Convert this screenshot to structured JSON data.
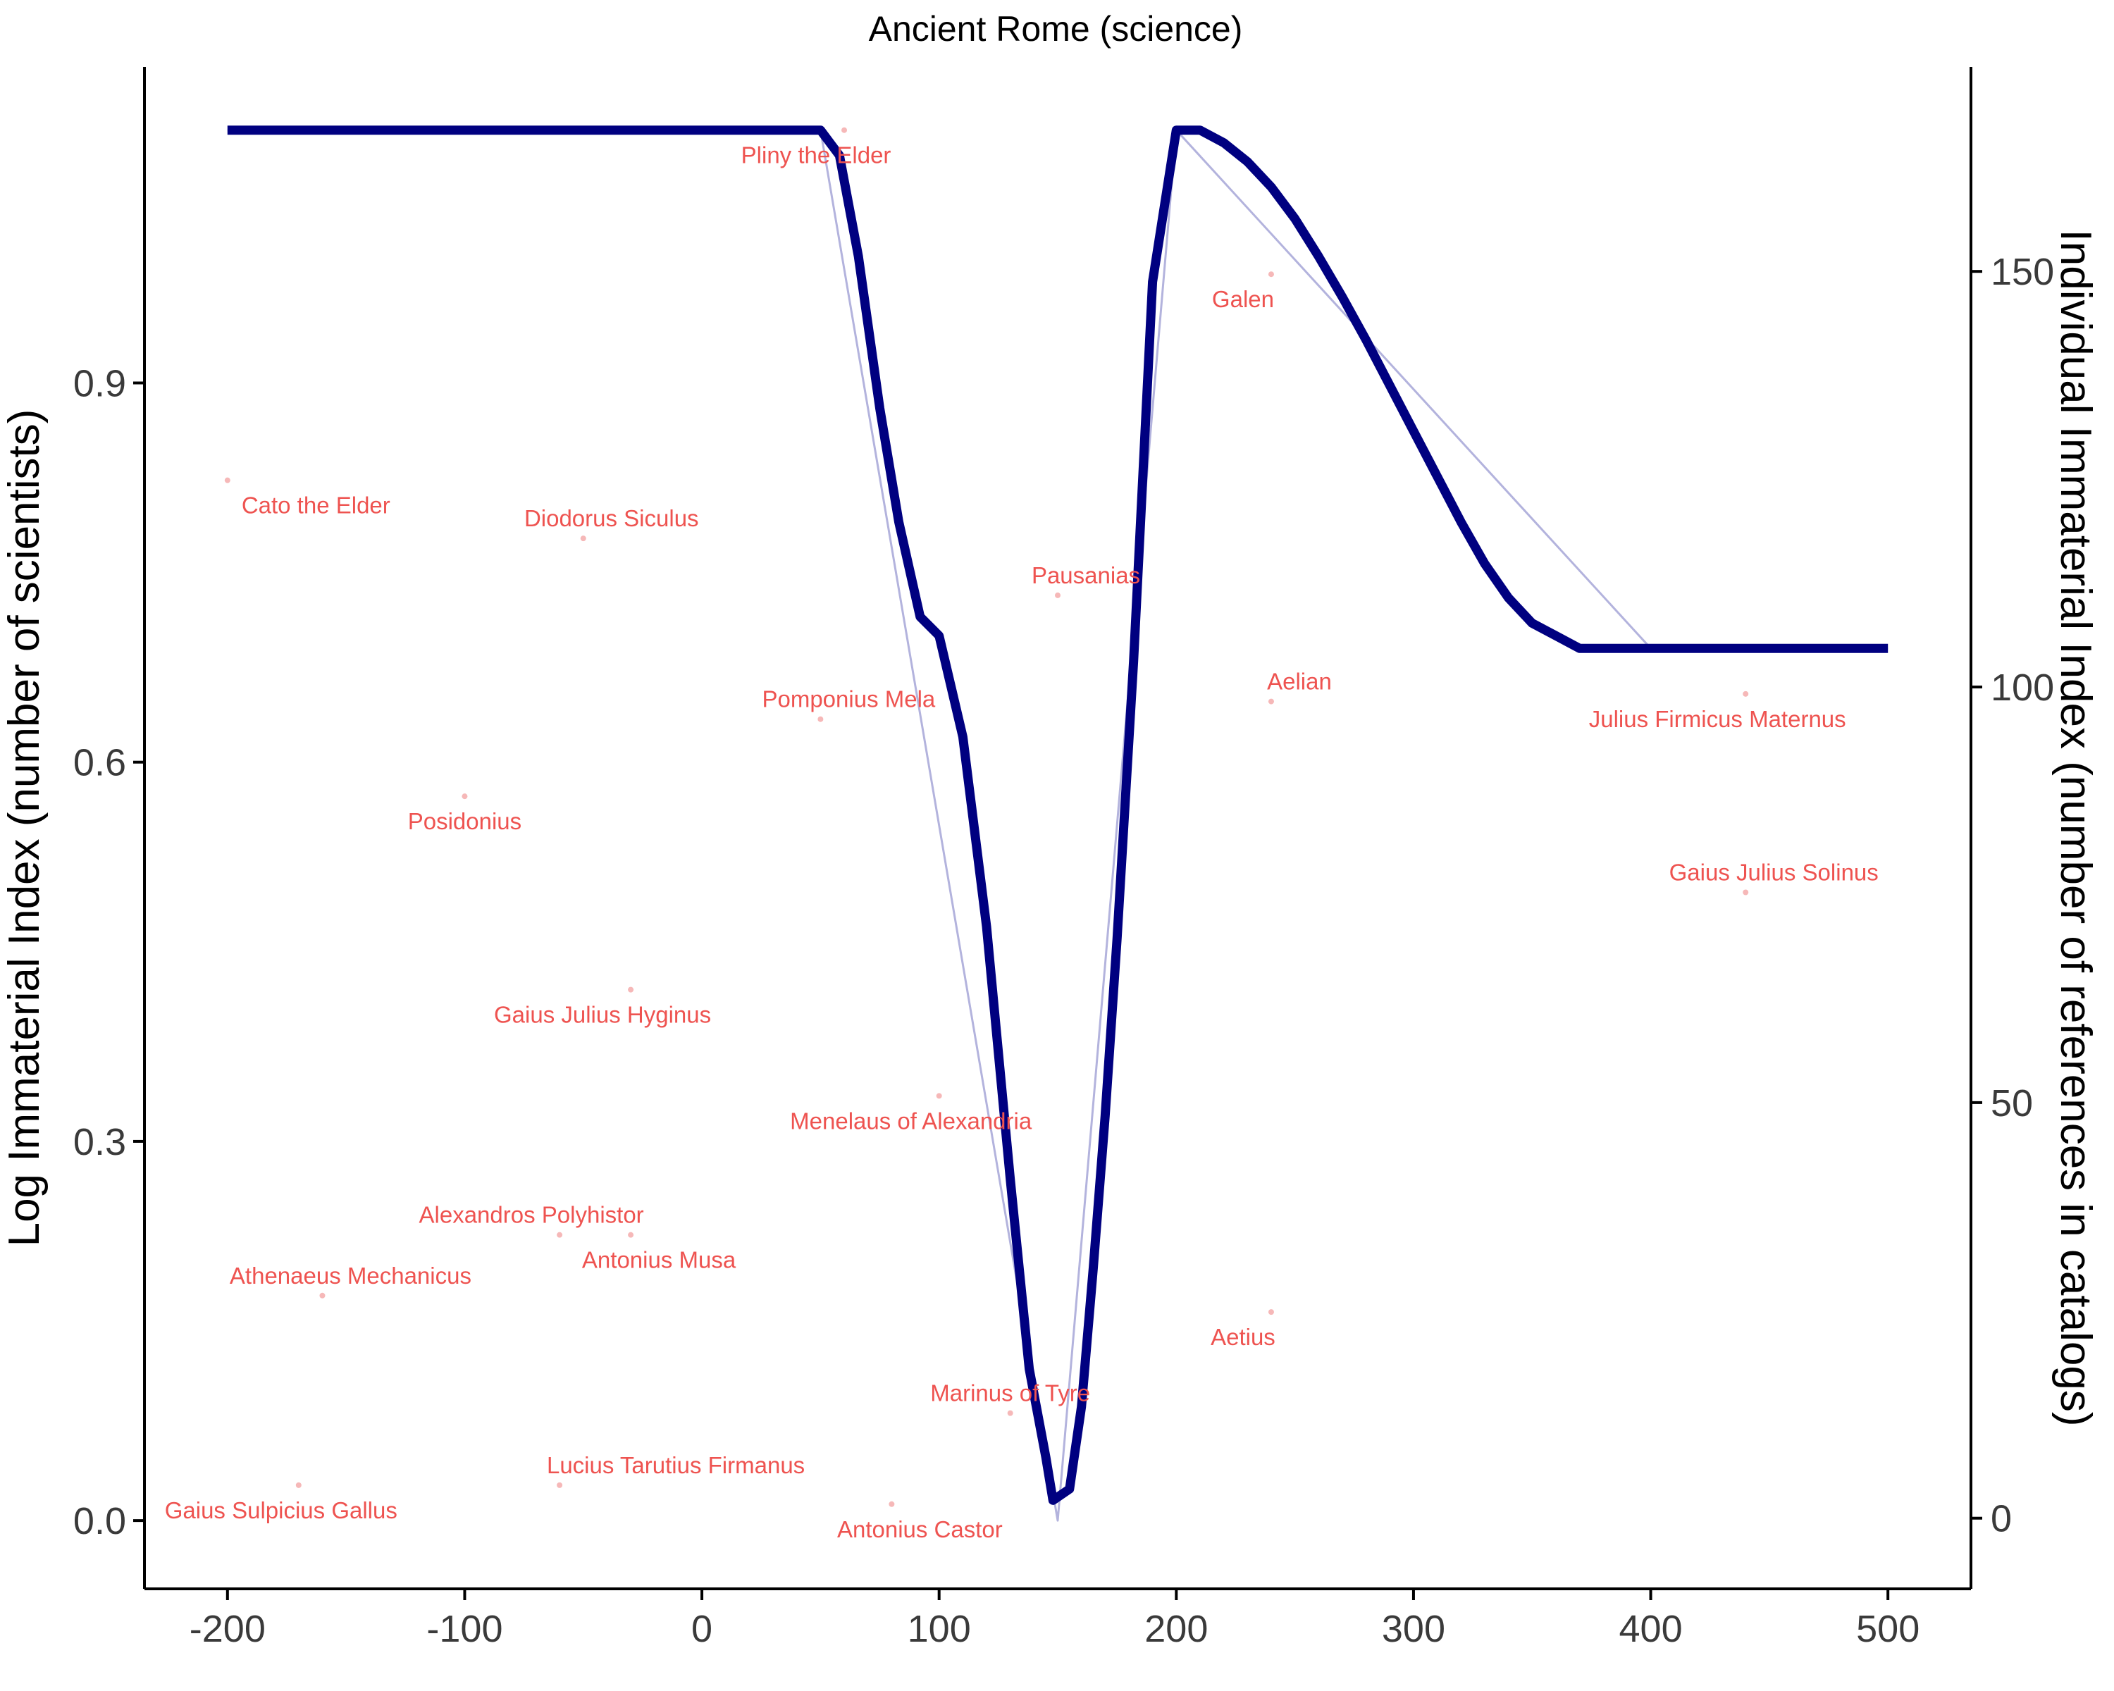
{
  "chart_data": {
    "type": "line",
    "title": "Ancient Rome (science)",
    "ylabel": "Log Immaterial Index (number of scientists)",
    "y2label": "Individual Immaterial Index (number of references in catalogs)",
    "xlabel": "",
    "xlim": [
      -235,
      535
    ],
    "ylim": [
      -0.054,
      1.15
    ],
    "y2lim": [
      -8.5,
      174.6
    ],
    "x_ticks": [
      -200,
      -100,
      0,
      100,
      200,
      300,
      400,
      500
    ],
    "y_ticks": [
      0.0,
      0.3,
      0.6,
      0.9
    ],
    "y2_ticks": [
      0,
      50,
      100,
      150
    ],
    "x_tick_labels": [
      "-200",
      "-100",
      "0",
      "100",
      "200",
      "300",
      "400",
      "500"
    ],
    "y_tick_labels": [
      "0.0",
      "0.3",
      "0.6",
      "0.9"
    ],
    "y2_tick_labels": [
      "0",
      "50",
      "100",
      "150"
    ],
    "grid": false,
    "colors": {
      "smooth_line": "#000080",
      "raw_line": "#b3b3dd",
      "points": "#f6b8b8",
      "labels": "#ee5350"
    },
    "series": [
      {
        "kind": "raw",
        "x": [
          -200,
          50,
          150,
          200,
          400,
          500
        ],
        "y": [
          1.1,
          1.1,
          0.0,
          1.1,
          0.69,
          0.69
        ]
      },
      {
        "kind": "smoothed",
        "x": [
          -200,
          0,
          50,
          58,
          66,
          75,
          83,
          92,
          100,
          110,
          120,
          130,
          138,
          145,
          148,
          155,
          160,
          165,
          170,
          175,
          182,
          190,
          200,
          210,
          220,
          230,
          240,
          250,
          260,
          270,
          280,
          290,
          300,
          310,
          320,
          330,
          340,
          350,
          360,
          370,
          380,
          390,
          400,
          450,
          500
        ],
        "y": [
          1.1,
          1.1,
          1.1,
          1.08,
          1.0,
          0.88,
          0.79,
          0.715,
          0.7,
          0.62,
          0.47,
          0.27,
          0.12,
          0.05,
          0.016,
          0.025,
          0.09,
          0.2,
          0.32,
          0.46,
          0.68,
          0.98,
          1.1,
          1.1,
          1.09,
          1.075,
          1.055,
          1.03,
          1.0,
          0.968,
          0.934,
          0.898,
          0.862,
          0.826,
          0.79,
          0.757,
          0.73,
          0.71,
          0.7,
          0.69,
          0.69,
          0.69,
          0.69,
          0.69,
          0.69
        ]
      }
    ],
    "points": [
      {
        "name": "Cato the Elder",
        "x": -200,
        "y": 0.823
      },
      {
        "name": "Diodorus Siculus",
        "x": -50,
        "y": 0.777
      },
      {
        "name": "Posidonius",
        "x": -100,
        "y": 0.573
      },
      {
        "name": "Gaius Julius Hyginus",
        "x": -30,
        "y": 0.42
      },
      {
        "name": "Alexandros Polyhistor",
        "x": -60,
        "y": 0.226
      },
      {
        "name": "Antonius Musa",
        "x": -30,
        "y": 0.226
      },
      {
        "name": "Athenaeus Mechanicus",
        "x": -160,
        "y": 0.178
      },
      {
        "name": "Gaius Sulpicius Gallus",
        "x": -170,
        "y": 0.028
      },
      {
        "name": "Lucius Tarutius Firmanus",
        "x": -60,
        "y": 0.028
      },
      {
        "name": "Pliny the Elder",
        "x": 60,
        "y": 1.1
      },
      {
        "name": "Pomponius Mela",
        "x": 50,
        "y": 0.634
      },
      {
        "name": "Menelaus of Alexandria",
        "x": 100,
        "y": 0.336
      },
      {
        "name": "Antonius Castor",
        "x": 80,
        "y": 0.013
      },
      {
        "name": "Marinus of Tyre",
        "x": 130,
        "y": 0.085
      },
      {
        "name": "Pausanias",
        "x": 150,
        "y": 0.732
      },
      {
        "name": "Galen",
        "x": 240,
        "y": 0.986
      },
      {
        "name": "Aelian",
        "x": 240,
        "y": 0.648
      },
      {
        "name": "Aetius",
        "x": 240,
        "y": 0.165
      },
      {
        "name": "Julius Firmicus Maternus",
        "x": 440,
        "y": 0.654
      },
      {
        "name": "Gaius Julius Solinus",
        "x": 440,
        "y": 0.497
      }
    ]
  }
}
